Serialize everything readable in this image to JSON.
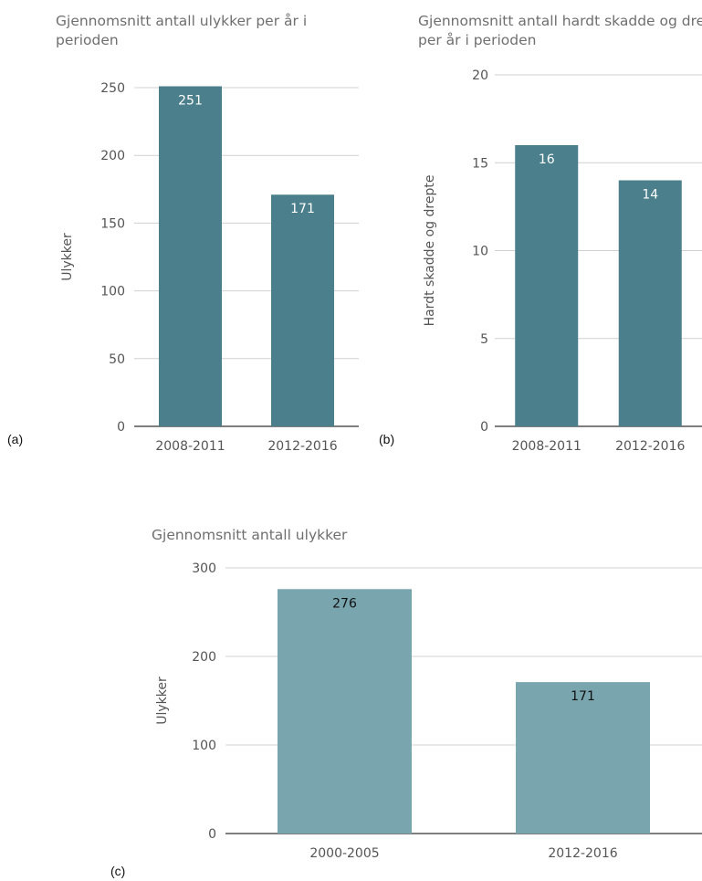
{
  "chart_data": [
    {
      "id": "a",
      "type": "bar",
      "title": "Gjennomsnitt antall ulykker per år i perioden",
      "panel_label": "(a)",
      "categories": [
        "2008-2011",
        "2012-2016"
      ],
      "values": [
        251,
        171
      ],
      "ylabel": "Ulykker",
      "ylim": [
        0,
        250
      ],
      "yticks": [
        0,
        50,
        100,
        150,
        200,
        250
      ],
      "grid": true,
      "bar_color": "#4a7f8b",
      "label_color": "#ffffff"
    },
    {
      "id": "b",
      "type": "bar",
      "title": "Gjennomsnitt antall hardt skadde og drepte per år i perioden",
      "panel_label": "(b)",
      "categories": [
        "2008-2011",
        "2012-2016"
      ],
      "values": [
        16,
        14
      ],
      "ylabel": "Hardt skadde og drepte",
      "ylim": [
        0,
        20
      ],
      "yticks": [
        0,
        5,
        10,
        15,
        20
      ],
      "grid": true,
      "bar_color": "#4a7f8b",
      "label_color": "#ffffff"
    },
    {
      "id": "c",
      "type": "bar",
      "title": "Gjennomsnitt antall ulykker",
      "panel_label": "(c)",
      "categories": [
        "2000-2005",
        "2012-2016"
      ],
      "values": [
        276,
        171
      ],
      "ylabel": "Ulykker",
      "ylim": [
        0,
        300
      ],
      "yticks": [
        0,
        100,
        200,
        300
      ],
      "grid": true,
      "bar_color": "#79a5af",
      "label_color": "#111111"
    }
  ]
}
